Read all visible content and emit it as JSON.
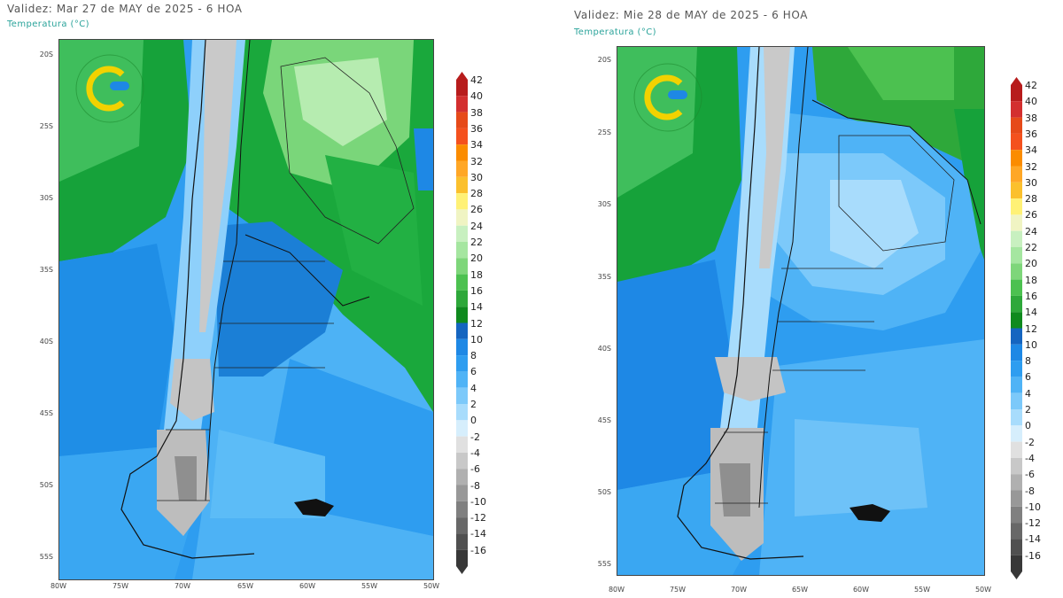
{
  "maps": [
    {
      "title": "Validez: Mar 27 de MAY de 2025 - 6 HOA",
      "subtitle": "Temperatura (°C)",
      "lat_labels": [
        "20S",
        "25S",
        "30S",
        "35S",
        "40S",
        "45S",
        "50S",
        "55S"
      ],
      "lon_labels": [
        "80W",
        "75W",
        "70W",
        "65W",
        "60W",
        "55W",
        "50W"
      ]
    },
    {
      "title": "Validez: Mie 28 de MAY de 2025 - 6 HOA",
      "subtitle": "Temperatura (°C)",
      "lat_labels": [
        "20S",
        "25S",
        "30S",
        "35S",
        "40S",
        "45S",
        "50S",
        "55S"
      ],
      "lon_labels": [
        "80W",
        "75W",
        "70W",
        "65W",
        "60W",
        "55W",
        "50W"
      ]
    }
  ],
  "colorbar": {
    "levels": [
      "42",
      "40",
      "38",
      "36",
      "34",
      "32",
      "30",
      "28",
      "26",
      "24",
      "22",
      "20",
      "18",
      "16",
      "14",
      "12",
      "10",
      "8",
      "6",
      "4",
      "2",
      "0",
      "-2",
      "-4",
      "-6",
      "-8",
      "-10",
      "-12",
      "-14",
      "-16"
    ],
    "colors": [
      "#b71c1c",
      "#d32f2f",
      "#e64a19",
      "#f4511e",
      "#fb8c00",
      "#ffa726",
      "#fbc02d",
      "#fff176",
      "#f0f4c3",
      "#c8f0c0",
      "#a5e6a0",
      "#7ed67a",
      "#4cc150",
      "#2ea83a",
      "#0f8a1e",
      "#1565c0",
      "#1e88e5",
      "#2e9df0",
      "#4fb3f6",
      "#7cc9fa",
      "#a8dcfc",
      "#d6eefc",
      "#e0e0e0",
      "#c8c8c8",
      "#b0b0b0",
      "#989898",
      "#808080",
      "#686868",
      "#505050",
      "#383838"
    ]
  }
}
